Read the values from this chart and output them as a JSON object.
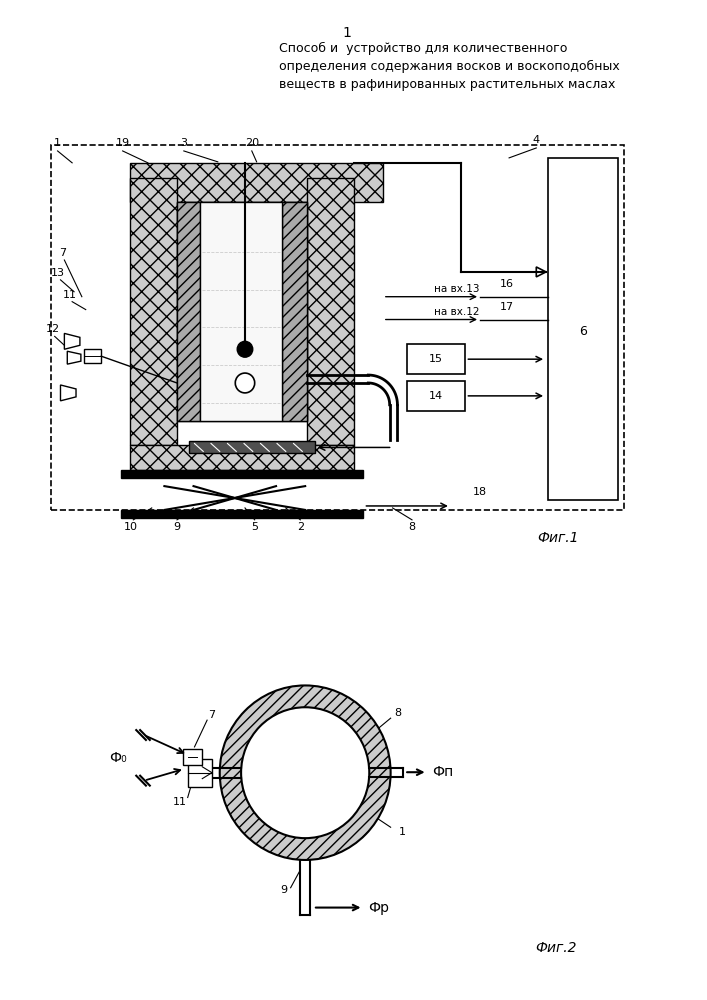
{
  "title_num": "1",
  "title_text": "Способ и  устройство для количественного\nопределения содержания восков и воскоподобных\nвеществ в рафинированных растительных маслах",
  "fig1_label": "Фиг.1",
  "fig2_label": "Фиг.2",
  "bg_color": "#ffffff",
  "line_color": "#000000"
}
